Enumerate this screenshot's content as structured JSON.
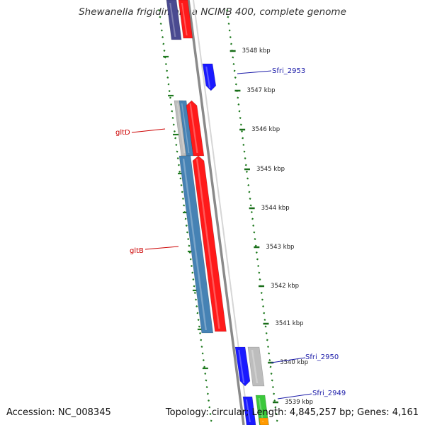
{
  "header": {
    "title": "Shewanella frigidimarina NCIMB 400, complete genome"
  },
  "footer": {
    "accession": "Accession: NC_008345",
    "summary": "Topology: circular; Length: 4,845,257 bp; Genes: 4,161"
  },
  "map": {
    "colors": {
      "backbone": "#8a8a8a",
      "tick_green": "#1f7a1f",
      "scale_tick": "#1a6e1a",
      "gene_red": "#ff1a1a",
      "gene_blue": "#1a1aff",
      "gene_steel": "#4682b4",
      "gene_gray": "#bdbdbd",
      "gene_navy": "#4a4a90",
      "gene_green": "#3cc83c",
      "gene_orange": "#ff9a00",
      "label_red": "#cc0000",
      "label_blue": "#1a1aa8"
    },
    "scale_labels": [
      "3548 kbp",
      "3547 kbp",
      "3546 kbp",
      "3545 kbp",
      "3544 kbp",
      "3543 kbp",
      "3542 kbp",
      "3541 kbp",
      "3540 kbp",
      "3539 kbp"
    ],
    "gene_labels": [
      {
        "text": "gltD",
        "color": "label_red"
      },
      {
        "text": "gltB",
        "color": "label_red"
      },
      {
        "text": "Sfri_2953",
        "color": "label_blue"
      },
      {
        "text": "Sfri_2950",
        "color": "label_blue"
      },
      {
        "text": "Sfri_2949",
        "color": "label_blue"
      }
    ]
  }
}
